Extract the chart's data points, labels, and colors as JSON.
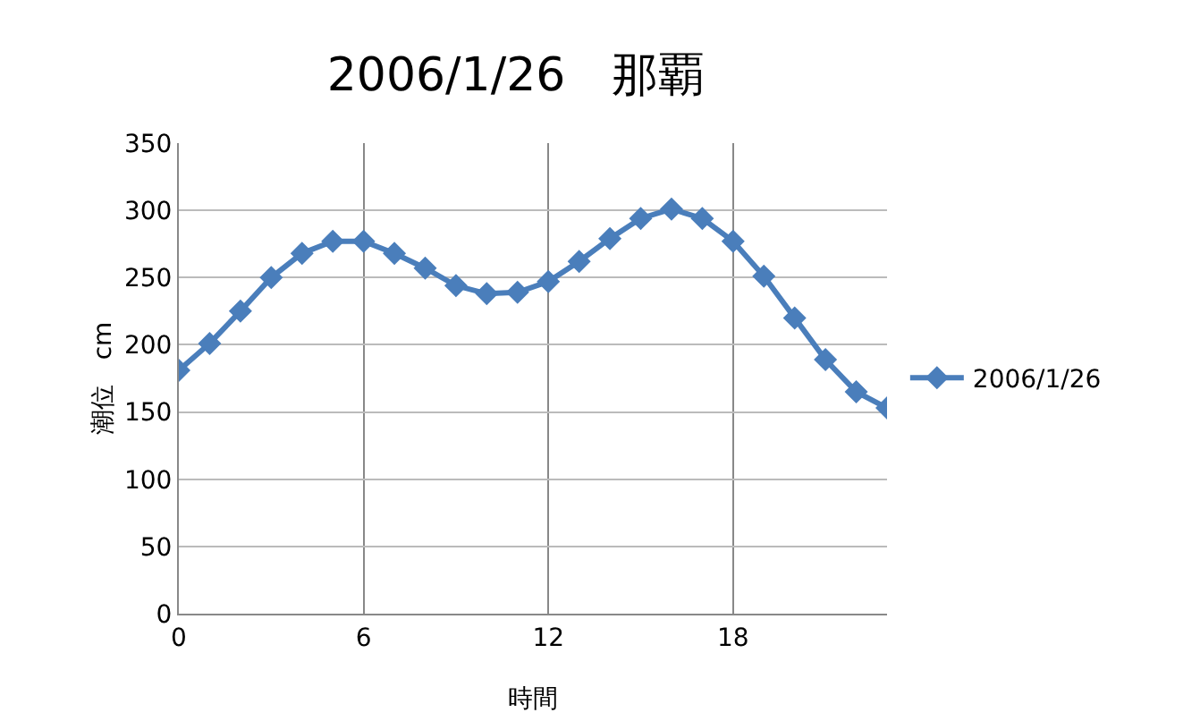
{
  "chart_data": {
    "type": "line",
    "title": "2006/1/26　那覇",
    "xlabel": "時間",
    "ylabel": "潮位　cm",
    "x": [
      0,
      1,
      2,
      3,
      4,
      5,
      6,
      7,
      8,
      9,
      10,
      11,
      12,
      13,
      14,
      15,
      16,
      17,
      18,
      19,
      20,
      21,
      22,
      23
    ],
    "series": [
      {
        "name": "2006/1/26",
        "color": "#4a7ebb",
        "values": [
          181,
          201,
          225,
          250,
          268,
          277,
          277,
          268,
          257,
          244,
          238,
          239,
          247,
          262,
          279,
          294,
          301,
          294,
          277,
          251,
          220,
          189,
          165,
          153
        ]
      }
    ],
    "xlim": [
      0,
      23
    ],
    "xticks": [
      0,
      6,
      12,
      18
    ],
    "ylim": [
      0,
      350
    ],
    "yticks": [
      0,
      50,
      100,
      150,
      200,
      250,
      300,
      350
    ],
    "grid": true,
    "legend": "right",
    "marker": "diamond",
    "line_style": "solid"
  }
}
